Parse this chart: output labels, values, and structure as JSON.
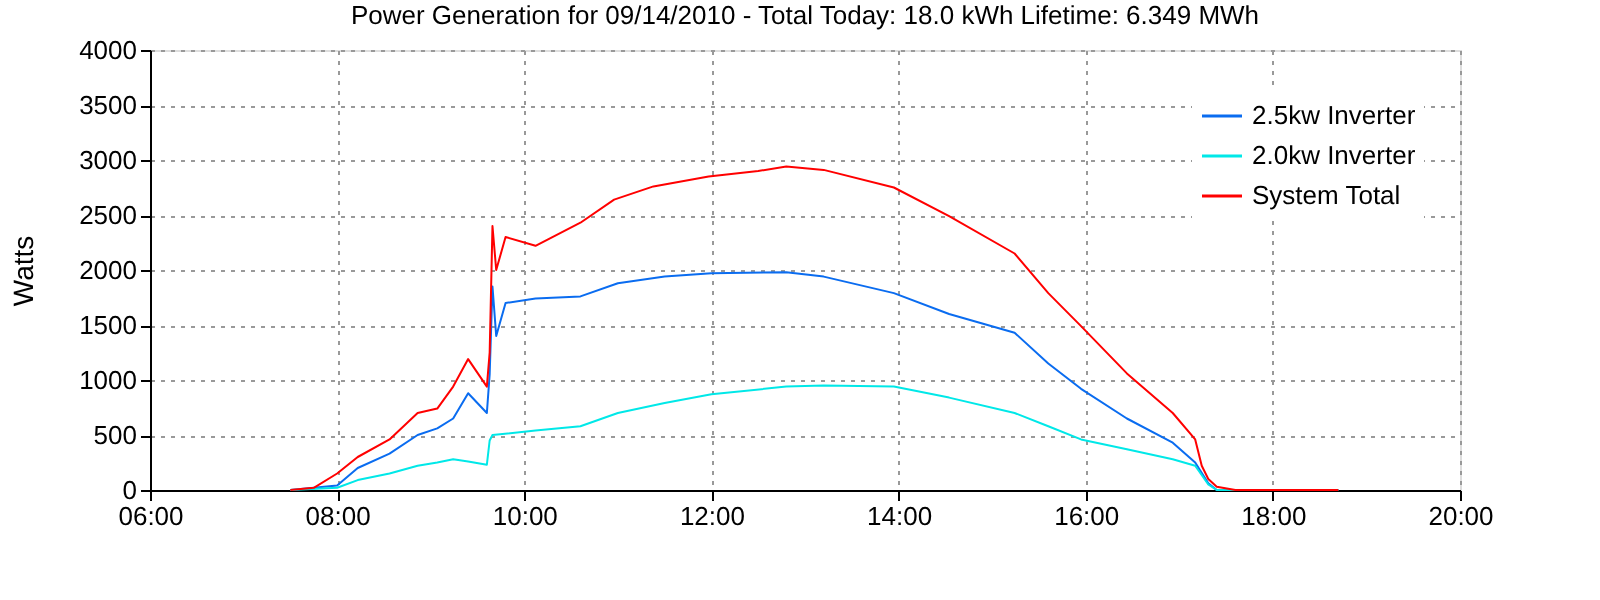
{
  "chart_data": {
    "type": "line",
    "title": "Power Generation for 09/14/2010 - Total Today: 18.0 kWh   Lifetime: 6.349 MWh",
    "ylabel": "Watts",
    "xlim": [
      6,
      20
    ],
    "xticks": [
      {
        "value": 6,
        "label": "06:00"
      },
      {
        "value": 8,
        "label": "08:00"
      },
      {
        "value": 10,
        "label": "10:00"
      },
      {
        "value": 12,
        "label": "12:00"
      },
      {
        "value": 14,
        "label": "14:00"
      },
      {
        "value": 16,
        "label": "16:00"
      },
      {
        "value": 18,
        "label": "18:00"
      },
      {
        "value": 20,
        "label": "20:00"
      }
    ],
    "ylim": [
      0,
      4000
    ],
    "yticks": [
      0,
      500,
      1000,
      1500,
      2000,
      2500,
      3000,
      3500,
      4000
    ],
    "grid": true,
    "legend": "top right",
    "line_style": "solid",
    "marker": "none",
    "series": [
      {
        "name": "2.5kw Inverter",
        "color": "#0a6cf0",
        "x": [
          7.5,
          8.0,
          8.22,
          8.56,
          8.86,
          9.07,
          9.24,
          9.4,
          9.6,
          9.63,
          9.66,
          9.7,
          9.8,
          10.12,
          10.6,
          11.0,
          11.5,
          12.0,
          12.8,
          13.2,
          13.95,
          14.54,
          15.24,
          15.6,
          15.95,
          16.44,
          16.93,
          17.17,
          17.31,
          17.4,
          18.7
        ],
        "values": [
          0,
          40,
          200,
          330,
          500,
          560,
          650,
          880,
          700,
          1050,
          1850,
          1400,
          1700,
          1740,
          1760,
          1880,
          1940,
          1970,
          1980,
          1940,
          1790,
          1600,
          1430,
          1150,
          920,
          650,
          430,
          250,
          60,
          0,
          0
        ]
      },
      {
        "name": "2.0kw Inverter",
        "color": "#00e8e8",
        "x": [
          7.5,
          8.0,
          8.22,
          8.56,
          8.86,
          9.07,
          9.24,
          9.4,
          9.6,
          9.63,
          9.66,
          10.12,
          10.6,
          11.0,
          11.5,
          12.0,
          12.8,
          13.2,
          13.95,
          14.54,
          15.24,
          15.6,
          15.95,
          16.44,
          16.93,
          17.17,
          17.31,
          17.4,
          18.7
        ],
        "values": [
          0,
          20,
          90,
          150,
          220,
          250,
          280,
          260,
          230,
          450,
          500,
          540,
          580,
          700,
          790,
          870,
          940,
          950,
          940,
          840,
          700,
          580,
          460,
          370,
          280,
          220,
          50,
          0,
          0
        ]
      },
      {
        "name": "System Total",
        "color": "#ff0000",
        "x": [
          7.5,
          7.75,
          8.0,
          8.22,
          8.56,
          8.86,
          9.07,
          9.24,
          9.4,
          9.6,
          9.63,
          9.66,
          9.7,
          9.8,
          10.12,
          10.6,
          10.96,
          11.38,
          11.97,
          12.5,
          12.8,
          13.2,
          13.95,
          14.54,
          15.24,
          15.6,
          15.95,
          16.44,
          16.93,
          17.17,
          17.24,
          17.31,
          17.4,
          17.6,
          18.7
        ],
        "values": [
          0,
          20,
          150,
          300,
          460,
          700,
          740,
          940,
          1190,
          940,
          1250,
          2400,
          2000,
          2300,
          2220,
          2430,
          2640,
          2760,
          2850,
          2900,
          2940,
          2910,
          2750,
          2490,
          2150,
          1790,
          1490,
          1060,
          700,
          460,
          220,
          100,
          30,
          0,
          0
        ]
      }
    ]
  }
}
